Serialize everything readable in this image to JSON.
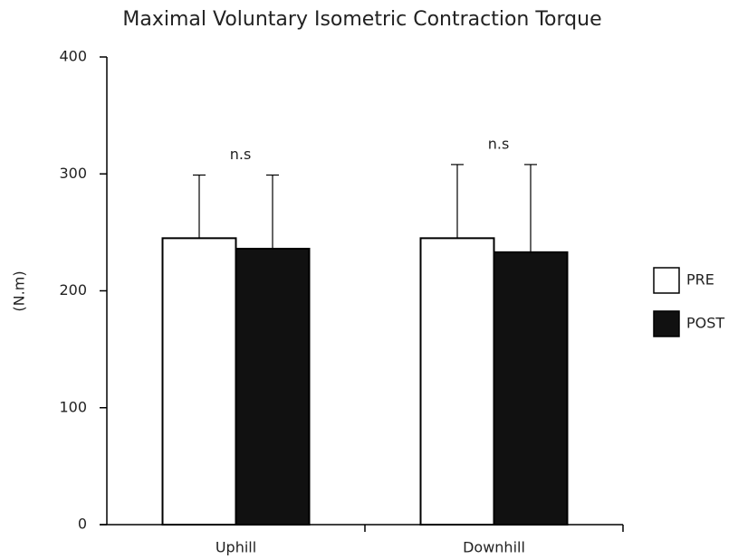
{
  "chart_data": {
    "type": "bar",
    "title": "Maximal Voluntary Isometric Contraction Torque",
    "y_label": "(N.m)",
    "categories": [
      "Uphill",
      "Downhill"
    ],
    "series": [
      {
        "name": "PRE",
        "color": "#ffffff",
        "values": [
          245,
          245
        ],
        "errors": [
          54,
          63
        ]
      },
      {
        "name": "POST",
        "color": "#111111",
        "values": [
          236,
          233
        ],
        "errors": [
          63,
          75
        ]
      }
    ],
    "annotations": [
      "n.s",
      "n.s"
    ],
    "ylim": [
      0,
      400
    ],
    "yticks": [
      0,
      100,
      200,
      300,
      400
    ],
    "grid": false,
    "legend": "right"
  }
}
